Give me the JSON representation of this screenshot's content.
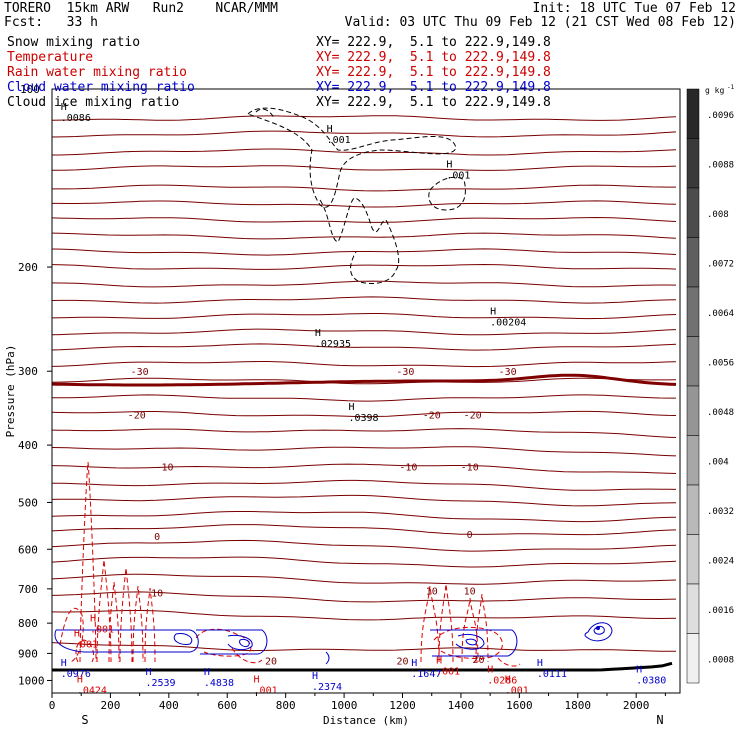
{
  "header": {
    "left_line1": "TORERO  15km ARW   Run2    NCAR/MMM",
    "left_line2": "Fcst:   33 h",
    "right_line1": "Init: 18 UTC Tue 07 Feb 12",
    "right_line2": "Valid: 03 UTC Thu 09 Feb 12 (21 CST Wed 08 Feb 12)"
  },
  "legend": [
    {
      "name": "Snow mixing ratio",
      "xy": "XY= 222.9,  5.1 to 222.9,149.8",
      "color": "#000000"
    },
    {
      "name": "Temperature",
      "xy": "XY= 222.9,  5.1 to 222.9,149.8",
      "color": "#cc0000"
    },
    {
      "name": "Rain water mixing ratio",
      "xy": "XY= 222.9,  5.1 to 222.9,149.8",
      "color": "#cc0000"
    },
    {
      "name": "Cloud water mixing ratio",
      "xy": "XY= 222.9,  5.1 to 222.9,149.8",
      "color": "#0000cc"
    },
    {
      "name": "Cloud ice mixing ratio",
      "xy": "XY= 222.9,  5.1 to 222.9,149.8",
      "color": "#000000"
    }
  ],
  "colors": {
    "temperature": "#7a0000",
    "zero_isotherm": "#800000",
    "rain": "#dd0000",
    "cloud_water": "#0000cc",
    "snow": "#000000",
    "terrain": "#000000"
  },
  "chart_data": {
    "type": "contour",
    "xlabel": "Distance (km)",
    "ylabel": "Pressure (hPa)",
    "xlim": [
      0,
      2150
    ],
    "ylim": [
      1050,
      100
    ],
    "y_scale": "log",
    "x_ticks": [
      "0",
      "200",
      "400",
      "600",
      "800",
      "1000",
      "1200",
      "1400",
      "1600",
      "1800",
      "2000"
    ],
    "y_ticks": [
      "200",
      "300",
      "400",
      "500",
      "600",
      "700",
      "800",
      "900",
      "1000"
    ],
    "y_top_label": "100",
    "end_labels": {
      "left": "S",
      "right": "N"
    },
    "colorbar": {
      "unit": "g kg",
      "unit_exp": "-1",
      "ticks": [
        ".0096",
        ".0088",
        ".008",
        ".0072",
        ".0064",
        ".0056",
        ".0048",
        ".004",
        ".0032",
        ".0024",
        ".0016",
        ".0008"
      ]
    },
    "temperature_labels": [
      {
        "text": "-30",
        "x": 300,
        "p": 300
      },
      {
        "text": "-30",
        "x": 1210,
        "p": 300
      },
      {
        "text": "-30",
        "x": 1560,
        "p": 300
      },
      {
        "text": "-20",
        "x": 290,
        "p": 355
      },
      {
        "text": "-20",
        "x": 1300,
        "p": 355
      },
      {
        "text": "-20",
        "x": 1440,
        "p": 355
      },
      {
        "text": "-10",
        "x": 385,
        "p": 435
      },
      {
        "text": "-10",
        "x": 1220,
        "p": 435
      },
      {
        "text": "-10",
        "x": 1430,
        "p": 435
      },
      {
        "text": "0",
        "x": 360,
        "p": 570
      },
      {
        "text": "0",
        "x": 1430,
        "p": 565
      },
      {
        "text": "10",
        "x": 360,
        "p": 710
      },
      {
        "text": "10",
        "x": 1300,
        "p": 705
      },
      {
        "text": "10",
        "x": 1430,
        "p": 705
      },
      {
        "text": "20",
        "x": 750,
        "p": 925
      },
      {
        "text": "20",
        "x": 1200,
        "p": 925
      },
      {
        "text": "20",
        "x": 1460,
        "p": 920
      }
    ],
    "maxima_labels": [
      {
        "text": ".0086",
        "x": 30,
        "p": 112,
        "color": "black"
      },
      {
        "text": ".001",
        "x": 940,
        "p": 122,
        "color": "black"
      },
      {
        "text": ".001",
        "x": 1350,
        "p": 140,
        "color": "black"
      },
      {
        "text": ".00204",
        "x": 1500,
        "p": 248,
        "color": "black"
      },
      {
        "text": ".02935",
        "x": 900,
        "p": 270,
        "color": "black"
      },
      {
        "text": ".0398",
        "x": 1015,
        "p": 360,
        "color": "black"
      },
      {
        "text": ".001",
        "x": 130,
        "p": 820,
        "color": "red"
      },
      {
        "text": ".001",
        "x": 75,
        "p": 870,
        "color": "red"
      },
      {
        "text": ".0976",
        "x": 30,
        "p": 975,
        "color": "blue"
      },
      {
        "text": ".2539",
        "x": 320,
        "p": 1010,
        "color": "blue"
      },
      {
        "text": ".0424",
        "x": 85,
        "p": 1040,
        "color": "red"
      },
      {
        "text": ".4838",
        "x": 520,
        "p": 1010,
        "color": "blue"
      },
      {
        "text": ".001",
        "x": 690,
        "p": 1040,
        "color": "red"
      },
      {
        "text": ".2374",
        "x": 890,
        "p": 1025,
        "color": "blue"
      },
      {
        "text": ".1647",
        "x": 1230,
        "p": 975,
        "color": "blue"
      },
      {
        "text": ".001",
        "x": 1315,
        "p": 965,
        "color": "red"
      },
      {
        "text": ".0286",
        "x": 1490,
        "p": 1000,
        "color": "red"
      },
      {
        "text": ".001",
        "x": 1550,
        "p": 1040,
        "color": "red"
      },
      {
        "text": ".0111",
        "x": 1660,
        "p": 975,
        "color": "blue"
      },
      {
        "text": ".0380",
        "x": 2000,
        "p": 1000,
        "color": "blue"
      }
    ]
  }
}
